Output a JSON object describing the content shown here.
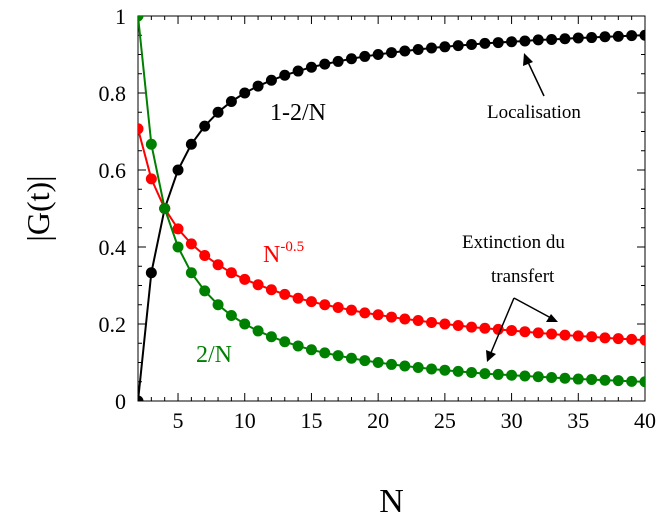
{
  "chart_data": {
    "type": "line",
    "title": "",
    "xlabel": "N",
    "ylabel": "|G(t)|",
    "xlim": [
      2,
      40
    ],
    "ylim": [
      0,
      1
    ],
    "xticks": [
      5,
      10,
      15,
      20,
      25,
      30,
      35,
      40
    ],
    "xtick_labels": [
      "5",
      "10",
      "15",
      "20",
      "25",
      "30",
      "35",
      "40"
    ],
    "yticks": [
      0,
      0.2,
      0.4,
      0.6,
      0.8,
      1
    ],
    "ytick_labels": [
      "0",
      "0.2",
      "0.4",
      "0.6",
      "0.8",
      "1"
    ],
    "grid": false,
    "x": [
      2,
      3,
      4,
      5,
      6,
      7,
      8,
      9,
      10,
      11,
      12,
      13,
      14,
      15,
      16,
      17,
      18,
      19,
      20,
      21,
      22,
      23,
      24,
      25,
      26,
      27,
      28,
      29,
      30,
      31,
      32,
      33,
      34,
      35,
      36,
      37,
      38,
      39,
      40
    ],
    "series": [
      {
        "name": "1-2/N",
        "color": "#000000",
        "values": [
          0,
          0.333,
          0.5,
          0.6,
          0.667,
          0.714,
          0.75,
          0.778,
          0.8,
          0.818,
          0.833,
          0.846,
          0.857,
          0.867,
          0.875,
          0.882,
          0.889,
          0.895,
          0.9,
          0.905,
          0.909,
          0.913,
          0.917,
          0.92,
          0.923,
          0.926,
          0.929,
          0.931,
          0.933,
          0.935,
          0.938,
          0.939,
          0.941,
          0.943,
          0.944,
          0.946,
          0.947,
          0.949,
          0.95
        ]
      },
      {
        "name": "N-0.5",
        "color": "#ff0000",
        "values": [
          0.707,
          0.577,
          0.5,
          0.447,
          0.408,
          0.378,
          0.354,
          0.333,
          0.316,
          0.302,
          0.289,
          0.277,
          0.267,
          0.258,
          0.25,
          0.243,
          0.236,
          0.229,
          0.224,
          0.218,
          0.213,
          0.209,
          0.204,
          0.2,
          0.196,
          0.192,
          0.189,
          0.186,
          0.183,
          0.18,
          0.177,
          0.174,
          0.171,
          0.169,
          0.167,
          0.164,
          0.162,
          0.16,
          0.158
        ]
      },
      {
        "name": "2/N",
        "color": "#008000",
        "values": [
          1,
          0.667,
          0.5,
          0.4,
          0.333,
          0.286,
          0.25,
          0.222,
          0.2,
          0.182,
          0.167,
          0.154,
          0.143,
          0.133,
          0.125,
          0.118,
          0.111,
          0.105,
          0.1,
          0.095,
          0.091,
          0.087,
          0.083,
          0.08,
          0.077,
          0.074,
          0.071,
          0.069,
          0.067,
          0.065,
          0.063,
          0.061,
          0.059,
          0.057,
          0.056,
          0.054,
          0.053,
          0.051,
          0.05
        ]
      }
    ],
    "annotations": {
      "black_label": "1-2/N",
      "red_label_base": "N",
      "red_label_exp": "-0.5",
      "green_label": "2/N",
      "localisation": "Localisation",
      "extinction_line1": "Extinction du",
      "extinction_line2": "transfert"
    }
  }
}
